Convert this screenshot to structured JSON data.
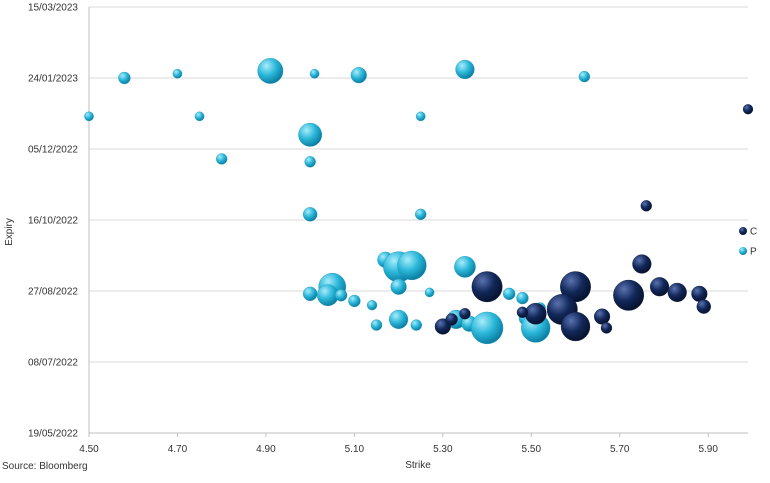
{
  "chart_data": {
    "type": "scatter",
    "title": "",
    "xlabel": "Strike",
    "ylabel": "Expiry",
    "xlim": [
      4.5,
      5.99
    ],
    "ylim": [
      "2022-05-19",
      "2023-03-15"
    ],
    "x_ticks": [
      "4.50",
      "4.70",
      "4.90",
      "5.10",
      "5.30",
      "5.50",
      "5.70",
      "5.90"
    ],
    "y_ticks": [
      "15/03/2023",
      "24/01/2023",
      "05/12/2022",
      "16/10/2022",
      "27/08/2022",
      "08/07/2022",
      "19/05/2022"
    ],
    "grid": "horizontal",
    "legend_position": "right",
    "source": "Source: Bloomberg",
    "colors": {
      "C": "#12285a",
      "P": "#29b6d8"
    },
    "series": [
      {
        "name": "P",
        "points": [
          {
            "x": 4.58,
            "y": "2023-01-24",
            "size": 1
          },
          {
            "x": 4.7,
            "y": "2023-01-27",
            "size": 0.5
          },
          {
            "x": 4.91,
            "y": "2023-01-29",
            "size": 6
          },
          {
            "x": 5.01,
            "y": "2023-01-27",
            "size": 0.5
          },
          {
            "x": 5.11,
            "y": "2023-01-26",
            "size": 2
          },
          {
            "x": 5.35,
            "y": "2023-01-30",
            "size": 3
          },
          {
            "x": 5.62,
            "y": "2023-01-25",
            "size": 0.8
          },
          {
            "x": 4.5,
            "y": "2022-12-28",
            "size": 0.5
          },
          {
            "x": 4.75,
            "y": "2022-12-28",
            "size": 0.5
          },
          {
            "x": 5.25,
            "y": "2022-12-28",
            "size": 0.5
          },
          {
            "x": 5.0,
            "y": "2022-12-15",
            "size": 5
          },
          {
            "x": 4.8,
            "y": "2022-11-28",
            "size": 0.8
          },
          {
            "x": 5.0,
            "y": "2022-11-26",
            "size": 0.8
          },
          {
            "x": 5.0,
            "y": "2022-10-20",
            "size": 1.5
          },
          {
            "x": 5.25,
            "y": "2022-10-20",
            "size": 0.8
          },
          {
            "x": 5.17,
            "y": "2022-09-18",
            "size": 2
          },
          {
            "x": 5.2,
            "y": "2022-09-13",
            "size": 9
          },
          {
            "x": 5.23,
            "y": "2022-09-14",
            "size": 8
          },
          {
            "x": 5.35,
            "y": "2022-09-13",
            "size": 4
          },
          {
            "x": 5.05,
            "y": "2022-08-30",
            "size": 7
          },
          {
            "x": 5.04,
            "y": "2022-08-24",
            "size": 4
          },
          {
            "x": 5.0,
            "y": "2022-08-25",
            "size": 1.5
          },
          {
            "x": 5.07,
            "y": "2022-08-24",
            "size": 1
          },
          {
            "x": 5.2,
            "y": "2022-08-30",
            "size": 2
          },
          {
            "x": 5.27,
            "y": "2022-08-26",
            "size": 0.5
          },
          {
            "x": 5.1,
            "y": "2022-08-20",
            "size": 1
          },
          {
            "x": 5.14,
            "y": "2022-08-17",
            "size": 0.6
          },
          {
            "x": 5.2,
            "y": "2022-08-07",
            "size": 3
          },
          {
            "x": 5.15,
            "y": "2022-08-03",
            "size": 0.8
          },
          {
            "x": 5.24,
            "y": "2022-08-03",
            "size": 0.8
          },
          {
            "x": 5.33,
            "y": "2022-08-07",
            "size": 3
          },
          {
            "x": 5.36,
            "y": "2022-08-04",
            "size": 2
          },
          {
            "x": 5.4,
            "y": "2022-08-01",
            "size": 10
          },
          {
            "x": 5.49,
            "y": "2022-08-08",
            "size": 2
          },
          {
            "x": 5.51,
            "y": "2022-08-01",
            "size": 8
          },
          {
            "x": 5.45,
            "y": "2022-08-25",
            "size": 1
          },
          {
            "x": 5.52,
            "y": "2022-08-15",
            "size": 0.8
          },
          {
            "x": 5.48,
            "y": "2022-08-22",
            "size": 1
          }
        ]
      },
      {
        "name": "C",
        "points": [
          {
            "x": 5.99,
            "y": "2023-01-02",
            "size": 0.6
          },
          {
            "x": 5.76,
            "y": "2022-10-26",
            "size": 0.8
          },
          {
            "x": 5.75,
            "y": "2022-09-15",
            "size": 3
          },
          {
            "x": 5.4,
            "y": "2022-08-30",
            "size": 9
          },
          {
            "x": 5.6,
            "y": "2022-08-30",
            "size": 9
          },
          {
            "x": 5.72,
            "y": "2022-08-24",
            "size": 9
          },
          {
            "x": 5.79,
            "y": "2022-08-30",
            "size": 3
          },
          {
            "x": 5.83,
            "y": "2022-08-26",
            "size": 3
          },
          {
            "x": 5.88,
            "y": "2022-08-25",
            "size": 2
          },
          {
            "x": 5.89,
            "y": "2022-08-16",
            "size": 1.5
          },
          {
            "x": 5.57,
            "y": "2022-08-14",
            "size": 9
          },
          {
            "x": 5.51,
            "y": "2022-08-11",
            "size": 4
          },
          {
            "x": 5.6,
            "y": "2022-08-02",
            "size": 8
          },
          {
            "x": 5.66,
            "y": "2022-08-09",
            "size": 2
          },
          {
            "x": 5.67,
            "y": "2022-08-01",
            "size": 0.8
          },
          {
            "x": 5.3,
            "y": "2022-08-02",
            "size": 2
          },
          {
            "x": 5.32,
            "y": "2022-08-07",
            "size": 1
          },
          {
            "x": 5.35,
            "y": "2022-08-11",
            "size": 0.8
          },
          {
            "x": 5.48,
            "y": "2022-08-12",
            "size": 0.8
          }
        ]
      }
    ]
  }
}
